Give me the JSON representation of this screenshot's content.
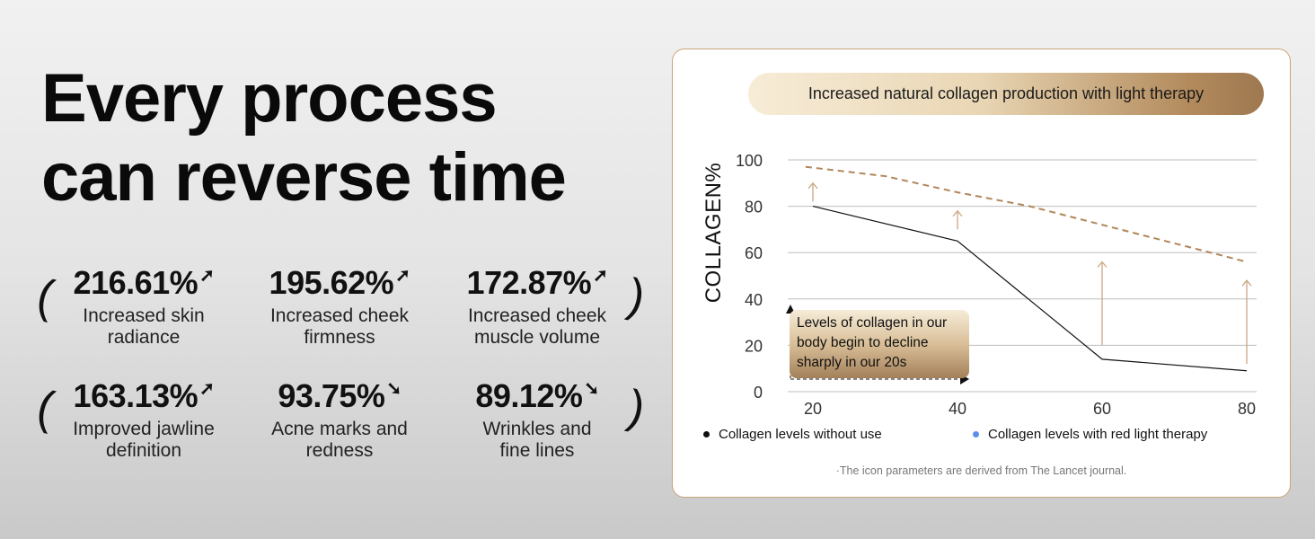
{
  "headline": [
    "Every process",
    "can reverse time"
  ],
  "stats": [
    {
      "value": "216.61%",
      "direction": "up",
      "label": [
        "Increased skin",
        "radiance"
      ]
    },
    {
      "value": "195.62%",
      "direction": "up",
      "label": [
        "Increased cheek",
        "firmness"
      ]
    },
    {
      "value": "172.87%",
      "direction": "up",
      "label": [
        "Increased cheek",
        "muscle volume"
      ]
    },
    {
      "value": "163.13%",
      "direction": "up",
      "label": [
        "Improved jawline",
        "definition"
      ]
    },
    {
      "value": "93.75%",
      "direction": "down",
      "label": [
        "Acne marks and",
        "redness"
      ]
    },
    {
      "value": "89.12%",
      "direction": "down",
      "label": [
        "Wrinkles and",
        "fine lines"
      ]
    }
  ],
  "arrows": {
    "up": "➚",
    "down": "➘"
  },
  "chart_data": {
    "type": "line",
    "title": "Increased natural collagen production with light therapy",
    "ylabel": "COLLAGEN%",
    "xlabel": "",
    "xlim": [
      17,
      82
    ],
    "ylim": [
      0,
      100
    ],
    "x_ticks": [
      20,
      40,
      60,
      80
    ],
    "y_ticks": [
      0,
      20,
      40,
      60,
      80,
      100
    ],
    "grid": true,
    "series": [
      {
        "name": "Collagen levels without use",
        "color": "#111111",
        "style": "solid",
        "x": [
          20,
          40,
          60,
          80
        ],
        "values": [
          80,
          65,
          14,
          9
        ]
      },
      {
        "name": "Collagen levels with red light therapy",
        "color": "#b0875a",
        "legend_color": "#5b8fe6",
        "style": "dashed",
        "x": [
          19,
          30,
          40,
          50,
          60,
          70,
          80
        ],
        "values": [
          97,
          93,
          86,
          80,
          72,
          64,
          56
        ]
      }
    ],
    "improvement_arrows": [
      {
        "x": 20,
        "from": 82,
        "to": 90
      },
      {
        "x": 40,
        "from": 70,
        "to": 78
      },
      {
        "x": 60,
        "from": 20,
        "to": 56
      },
      {
        "x": 80,
        "from": 12,
        "to": 48
      }
    ],
    "annotation": "Levels of collagen in our body begin to decline sharply in our 20s",
    "footnote": "·The icon parameters are derived from The Lancet journal."
  }
}
